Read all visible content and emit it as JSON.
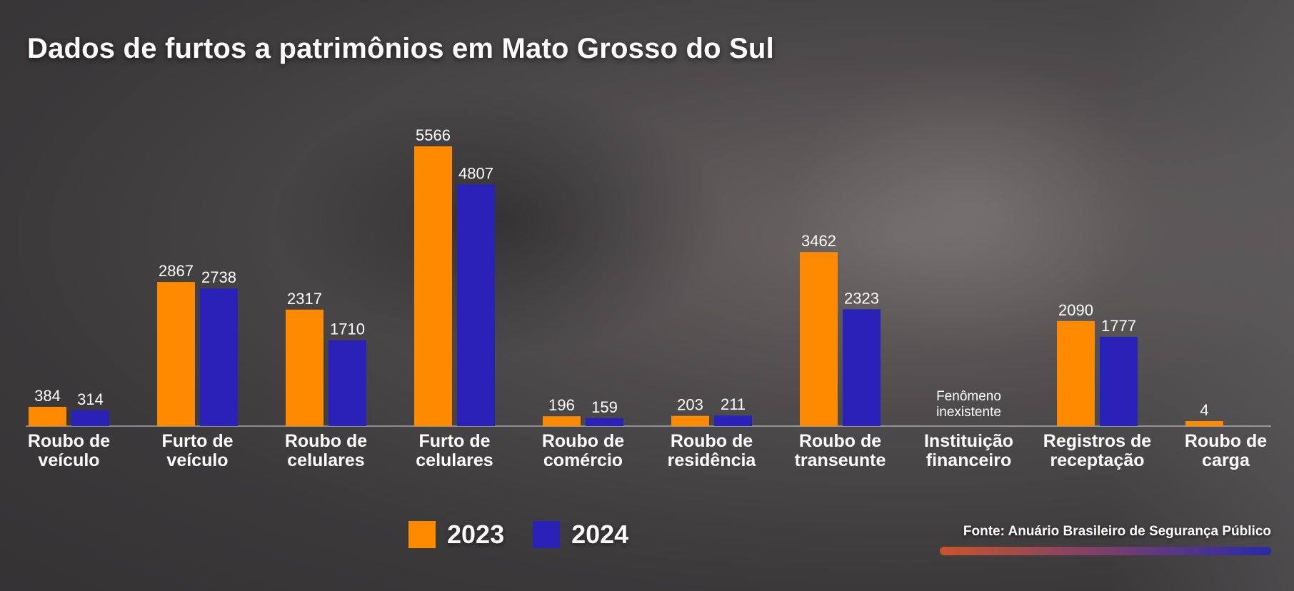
{
  "title": "Dados de furtos a patrimônios em Mato Grosso do Sul",
  "source": "Fonte: Anuário Brasileiro de Segurança Público",
  "colors": {
    "series_2023": "#ff8a00",
    "series_2024": "#2a22b8",
    "source_bar_start": "#c8552e",
    "source_bar_end": "#2a2aa8"
  },
  "chart_data": {
    "type": "bar",
    "title": "Dados de furtos a patrimônios em Mato Grosso do Sul",
    "legend_position": "bottom-center",
    "grid": false,
    "categories": [
      [
        "Roubo de",
        "veículo"
      ],
      [
        "Furto de",
        "veículo"
      ],
      [
        "Roubo de",
        "celulares"
      ],
      [
        "Furto de",
        "celulares"
      ],
      [
        "Roubo de",
        "comércio"
      ],
      [
        "Roubo de",
        "residência"
      ],
      [
        "Roubo de",
        "transeunte"
      ],
      [
        "Instituição",
        "financeiro"
      ],
      [
        "Registros de",
        "receptação"
      ],
      [
        "Roubo de",
        "carga"
      ]
    ],
    "series": [
      {
        "name": "2023",
        "values": [
          384,
          2867,
          2317,
          5566,
          196,
          203,
          3462,
          null,
          2090,
          4
        ]
      },
      {
        "name": "2024",
        "values": [
          314,
          2738,
          1710,
          4807,
          159,
          211,
          2323,
          null,
          1777,
          null
        ]
      }
    ],
    "annotations": [
      {
        "category_index": 7,
        "lines": [
          "Fenômeno",
          "inexistente"
        ]
      }
    ],
    "ylim": [
      0,
      5566
    ]
  }
}
